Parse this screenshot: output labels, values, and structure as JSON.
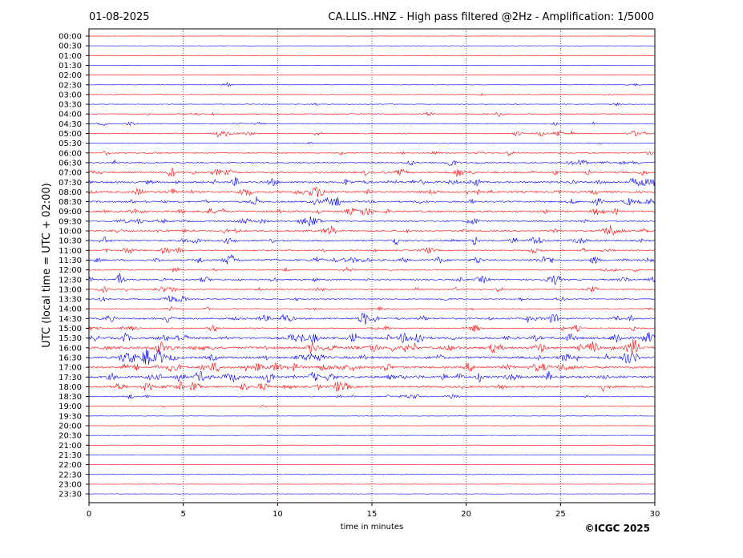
{
  "chart_data": {
    "type": "line",
    "title_left": "01-08-2025",
    "title_right": "CA.LLIS..HNZ - High pass filtered @2Hz - Amplification: 1/5000",
    "xlabel": "time in minutes",
    "ylabel": "UTC (local time = UTC + 02:00)",
    "xlim": [
      0,
      30
    ],
    "x_ticks": [
      0,
      5,
      10,
      15,
      20,
      25,
      30
    ],
    "x_grid": "dotted",
    "rows": [
      "00:00",
      "00:30",
      "01:00",
      "01:30",
      "02:00",
      "02:30",
      "03:00",
      "03:30",
      "04:00",
      "04:30",
      "05:00",
      "05:30",
      "06:00",
      "06:30",
      "07:00",
      "07:30",
      "08:00",
      "08:30",
      "09:00",
      "09:30",
      "10:00",
      "10:30",
      "11:00",
      "11:30",
      "12:00",
      "12:30",
      "13:00",
      "13:30",
      "14:00",
      "14:30",
      "15:00",
      "15:30",
      "16:00",
      "16:30",
      "17:00",
      "17:30",
      "18:00",
      "18:30",
      "19:00",
      "19:30",
      "20:00",
      "20:30",
      "21:00",
      "21:30",
      "22:00",
      "22:30",
      "23:00",
      "23:30"
    ],
    "row_colors": [
      "#ff0000",
      "#0000ff"
    ],
    "activity": [
      0,
      0,
      0,
      0,
      0,
      0.5,
      0.5,
      1,
      2,
      2,
      3,
      1,
      3,
      4,
      6,
      7,
      7,
      6,
      6,
      5,
      5,
      6,
      4,
      6,
      3,
      5,
      4,
      3,
      2,
      6,
      4,
      9,
      9,
      9,
      9,
      9,
      7,
      3,
      0.5,
      0,
      0,
      0,
      0,
      0,
      0,
      0,
      0,
      0
    ],
    "events": [
      {
        "row": "02:30",
        "t": 28.9,
        "amp": 0.25
      },
      {
        "row": "03:30",
        "t": 28,
        "amp": 0.25
      },
      {
        "row": "05:00",
        "t": 6.9,
        "amp": 0.6
      },
      {
        "row": "05:00",
        "t": 22.7,
        "amp": 0.4
      },
      {
        "row": "05:00",
        "t": 24.9,
        "amp": 0.6
      },
      {
        "row": "09:30",
        "t": 2.6,
        "amp": 0.5
      },
      {
        "row": "10:00",
        "t": 27.7,
        "amp": 1.2
      },
      {
        "row": "11:30",
        "t": 18.6,
        "amp": 0.6
      },
      {
        "row": "11:30",
        "t": 20.6,
        "amp": 0.6
      },
      {
        "row": "11:30",
        "t": 24.2,
        "amp": 0.6
      },
      {
        "row": "11:30",
        "t": 26.8,
        "amp": 0.6
      },
      {
        "row": "12:30",
        "t": 24.8,
        "amp": 0.6
      },
      {
        "row": "14:30",
        "t": 14.7,
        "amp": 0.8
      },
      {
        "row": "15:00",
        "t": 6.6,
        "amp": 0.6
      },
      {
        "row": "16:00",
        "t": 28.9,
        "amp": 0.9
      }
    ],
    "copyright": "©ICGC 2025"
  }
}
